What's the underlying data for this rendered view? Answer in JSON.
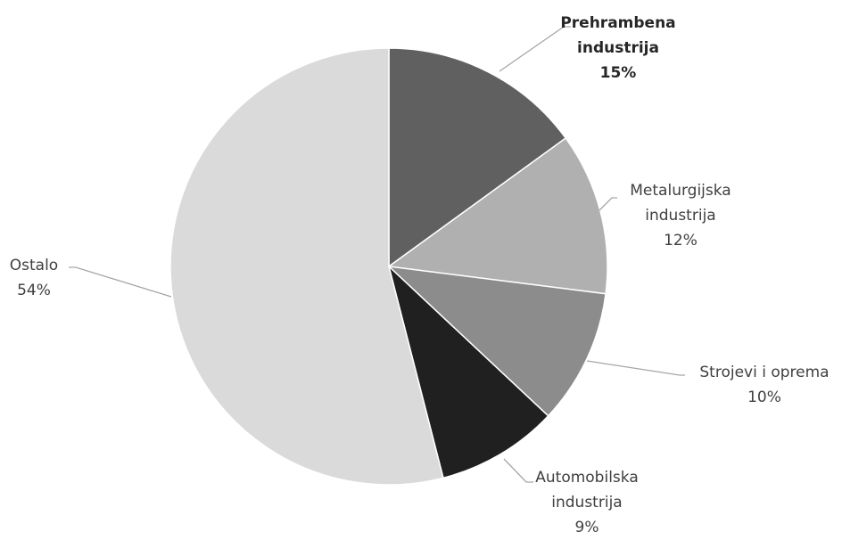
{
  "chart_data": {
    "type": "pie",
    "categories": [
      "Prehrambena industrija",
      "Metalurgijska industrija",
      "Strojevi i oprema",
      "Automobilska industrija",
      "Ostalo"
    ],
    "values": [
      15,
      12,
      10,
      9,
      54
    ],
    "value_labels": [
      "15%",
      "12%",
      "10%",
      "9%",
      "54%"
    ],
    "colors": [
      "#606060",
      "#b0b0b0",
      "#8c8c8c",
      "#202020",
      "#dadada"
    ]
  }
}
